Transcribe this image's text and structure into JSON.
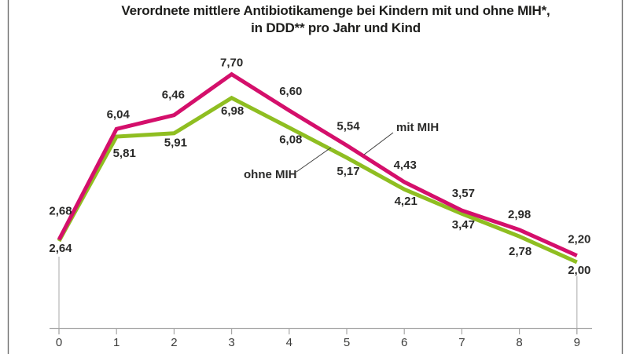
{
  "chart": {
    "title_line1": "Verordnete mittlere Antibiotikamenge bei Kindern mit und ohne MIH*,",
    "title_line2": "in DDD** pro Jahr und Kind"
  },
  "chart_data": {
    "type": "line",
    "title": "Verordnete mittlere Antibiotikamenge bei Kindern mit und ohne MIH*, in DDD** pro Jahr und Kind",
    "xlabel": "",
    "ylabel": "",
    "x": [
      0,
      1,
      2,
      3,
      4,
      5,
      6,
      7,
      8,
      9
    ],
    "x_tick_labels": [
      "0",
      "1",
      "2",
      "3",
      "4",
      "5",
      "6",
      "7",
      "8",
      "9"
    ],
    "ylim": [
      0,
      8
    ],
    "grid": false,
    "legend_position": "inline-annotations",
    "series": [
      {
        "name": "mit MIH",
        "color": "#d40f6b",
        "values": [
          2.68,
          6.04,
          6.46,
          7.7,
          6.6,
          5.54,
          4.43,
          3.57,
          2.98,
          2.2
        ],
        "point_labels": [
          "2,68",
          "6,04",
          "6,46",
          "7,70",
          "6,60",
          "5,54",
          "4,43",
          "3,57",
          "2,98",
          "2,20"
        ]
      },
      {
        "name": "ohne MIH",
        "color": "#8fbe21",
        "values": [
          2.64,
          5.81,
          5.91,
          6.98,
          6.08,
          5.17,
          4.21,
          3.47,
          2.78,
          2.0
        ],
        "point_labels": [
          "2,64",
          "5,81",
          "5,91",
          "6,98",
          "6,08",
          "5,17",
          "4,21",
          "3,47",
          "2,78",
          "2,00"
        ]
      }
    ],
    "annotations": [
      {
        "text": "mit MIH",
        "target_series": "mit MIH"
      },
      {
        "text": "ohne MIH",
        "target_series": "ohne MIH"
      }
    ]
  }
}
